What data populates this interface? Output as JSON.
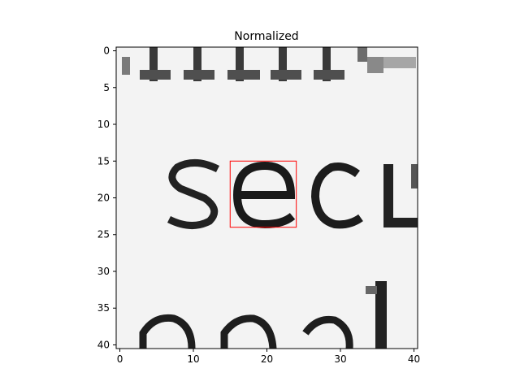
{
  "chart_data": {
    "type": "heatmap",
    "title": "Normalized",
    "colormap": "gray",
    "image_size": [
      41,
      41
    ],
    "xlim": [
      -0.5,
      40.5
    ],
    "ylim": [
      40.5,
      -0.5
    ],
    "xticks": [
      0,
      10,
      20,
      30,
      40
    ],
    "yticks": [
      0,
      5,
      10,
      15,
      20,
      25,
      30,
      35,
      40
    ],
    "x_tick_labels": [
      "0",
      "10",
      "20",
      "30",
      "40"
    ],
    "y_tick_labels": [
      "0",
      "5",
      "10",
      "15",
      "20",
      "25",
      "30",
      "35",
      "40"
    ],
    "image_content": {
      "visible_text_fragments": [
        "sec"
      ],
      "description": "Grayscale crop of printed text; partial glyphs along top edge and lower edge"
    },
    "annotation": {
      "shape": "rectangle",
      "color": "#ff0000",
      "x_range": [
        15,
        24
      ],
      "y_range": [
        15,
        24
      ]
    }
  }
}
